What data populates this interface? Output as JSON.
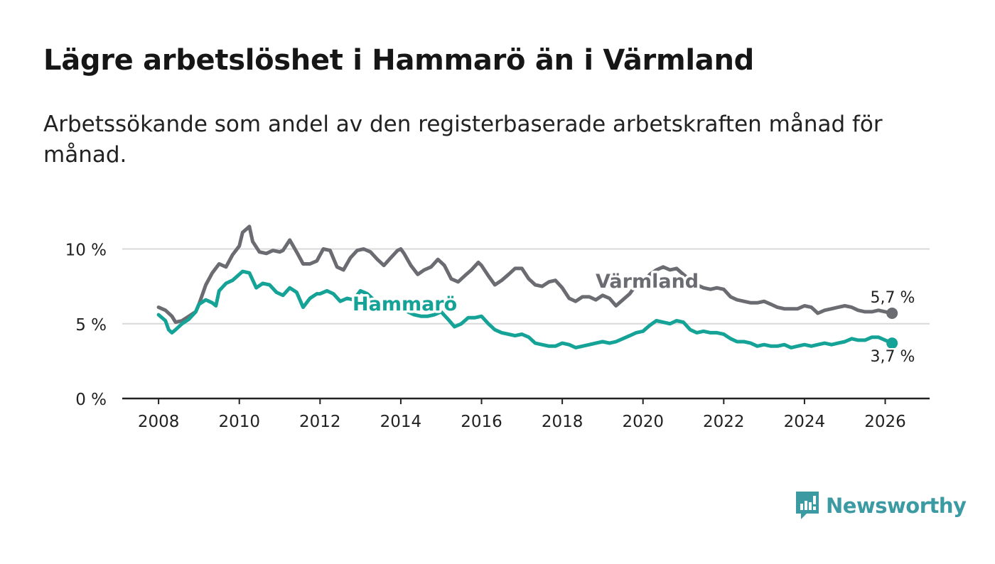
{
  "title": "Lägre arbetslöshet i Hammarö än i Värmland",
  "subtitle": "Arbetssökande som andel av den registerbaserade arbetskraften månad för månad.",
  "brand": {
    "name": "Newsworthy",
    "logo_icon": "bar-chart-speech-bubble-icon"
  },
  "colors": {
    "varmland": "#6b6b72",
    "hammaro": "#14a396",
    "grid": "#d9d9d9",
    "axis": "#222222",
    "brand": "#3b9aa2"
  },
  "chart_data": {
    "type": "line",
    "title": "Lägre arbetslöshet i Hammarö än i Värmland",
    "xlabel": "",
    "ylabel": "",
    "xlim": [
      2007.1,
      2027.1
    ],
    "ylim": [
      0,
      10
    ],
    "x_ticks": [
      2008,
      2010,
      2012,
      2014,
      2016,
      2018,
      2020,
      2022,
      2024,
      2026
    ],
    "x_tick_labels": [
      "2008",
      "2010",
      "2012",
      "2014",
      "2016",
      "2018",
      "2020",
      "2022",
      "2024",
      "2026"
    ],
    "y_ticks": [
      0,
      5,
      10
    ],
    "y_tick_labels": [
      "0 %",
      "5 %",
      "10 %"
    ],
    "grid": true,
    "series": [
      {
        "name": "Värmland",
        "x": [
          2008.0,
          2008.17,
          2008.33,
          2008.42,
          2008.58,
          2008.75,
          2008.92,
          2009.0,
          2009.17,
          2009.33,
          2009.5,
          2009.67,
          2009.83,
          2010.0,
          2010.08,
          2010.25,
          2010.33,
          2010.5,
          2010.67,
          2010.83,
          2011.0,
          2011.08,
          2011.25,
          2011.42,
          2011.58,
          2011.75,
          2011.92,
          2012.0,
          2012.08,
          2012.25,
          2012.42,
          2012.58,
          2012.75,
          2012.92,
          2013.08,
          2013.25,
          2013.42,
          2013.58,
          2013.75,
          2013.92,
          2014.0,
          2014.08,
          2014.25,
          2014.42,
          2014.58,
          2014.75,
          2014.92,
          2015.08,
          2015.25,
          2015.42,
          2015.58,
          2015.75,
          2015.92,
          2016.0,
          2016.17,
          2016.33,
          2016.5,
          2016.67,
          2016.83,
          2017.0,
          2017.17,
          2017.33,
          2017.5,
          2017.67,
          2017.83,
          2018.0,
          2018.17,
          2018.33,
          2018.5,
          2018.67,
          2018.83,
          2019.0,
          2019.17,
          2019.33,
          2019.5,
          2019.67,
          2019.83,
          2020.0,
          2020.17,
          2020.33,
          2020.5,
          2020.67,
          2020.83,
          2021.0,
          2021.17,
          2021.33,
          2021.5,
          2021.67,
          2021.83,
          2022.0,
          2022.17,
          2022.33,
          2022.5,
          2022.67,
          2022.83,
          2023.0,
          2023.17,
          2023.33,
          2023.5,
          2023.67,
          2023.83,
          2024.0,
          2024.17,
          2024.33,
          2024.5,
          2024.67,
          2024.83,
          2025.0,
          2025.17,
          2025.33,
          2025.5,
          2025.67,
          2025.83,
          2026.0,
          2026.17
        ],
        "values": [
          6.1,
          5.9,
          5.5,
          5.1,
          5.2,
          5.5,
          5.8,
          6.3,
          7.6,
          8.4,
          9.0,
          8.8,
          9.6,
          10.2,
          11.1,
          11.5,
          10.5,
          9.8,
          9.7,
          9.9,
          9.8,
          9.9,
          10.6,
          9.8,
          9.0,
          9.0,
          9.2,
          9.6,
          10.0,
          9.9,
          8.8,
          8.6,
          9.4,
          9.9,
          10.0,
          9.8,
          9.3,
          8.9,
          9.4,
          9.9,
          10.0,
          9.7,
          8.9,
          8.3,
          8.6,
          8.8,
          9.3,
          8.9,
          8.0,
          7.8,
          8.2,
          8.6,
          9.1,
          8.9,
          8.2,
          7.6,
          7.9,
          8.3,
          8.7,
          8.7,
          8.0,
          7.6,
          7.5,
          7.8,
          7.9,
          7.4,
          6.7,
          6.5,
          6.8,
          6.8,
          6.6,
          6.9,
          6.7,
          6.2,
          6.6,
          7.0,
          7.6,
          7.8,
          8.3,
          8.6,
          8.8,
          8.6,
          8.7,
          8.3,
          7.9,
          7.6,
          7.4,
          7.3,
          7.4,
          7.3,
          6.8,
          6.6,
          6.5,
          6.4,
          6.4,
          6.5,
          6.3,
          6.1,
          6.0,
          6.0,
          6.0,
          6.2,
          6.1,
          5.7,
          5.9,
          6.0,
          6.1,
          6.2,
          6.1,
          5.9,
          5.8,
          5.8,
          5.9,
          5.8,
          5.7
        ]
      },
      {
        "name": "Hammarö",
        "x": [
          2008.0,
          2008.17,
          2008.25,
          2008.33,
          2008.42,
          2008.58,
          2008.75,
          2008.92,
          2009.0,
          2009.17,
          2009.33,
          2009.42,
          2009.5,
          2009.67,
          2009.83,
          2010.0,
          2010.08,
          2010.25,
          2010.42,
          2010.58,
          2010.75,
          2010.92,
          2011.08,
          2011.25,
          2011.42,
          2011.58,
          2011.75,
          2011.92,
          2012.0,
          2012.17,
          2012.33,
          2012.5,
          2012.67,
          2012.83,
          2013.0,
          2013.17,
          2013.33,
          2013.5,
          2013.67,
          2013.83,
          2014.0,
          2014.17,
          2014.33,
          2014.5,
          2014.67,
          2014.83,
          2015.0,
          2015.17,
          2015.33,
          2015.5,
          2015.67,
          2015.83,
          2016.0,
          2016.17,
          2016.33,
          2016.5,
          2016.67,
          2016.83,
          2017.0,
          2017.17,
          2017.33,
          2017.5,
          2017.67,
          2017.83,
          2018.0,
          2018.17,
          2018.33,
          2018.5,
          2018.67,
          2018.83,
          2019.0,
          2019.17,
          2019.33,
          2019.5,
          2019.67,
          2019.83,
          2020.0,
          2020.17,
          2020.33,
          2020.5,
          2020.67,
          2020.83,
          2021.0,
          2021.17,
          2021.33,
          2021.5,
          2021.67,
          2021.83,
          2022.0,
          2022.17,
          2022.33,
          2022.5,
          2022.67,
          2022.83,
          2023.0,
          2023.17,
          2023.33,
          2023.5,
          2023.67,
          2023.83,
          2024.0,
          2024.17,
          2024.33,
          2024.5,
          2024.67,
          2024.83,
          2025.0,
          2025.17,
          2025.33,
          2025.5,
          2025.67,
          2025.83,
          2026.0,
          2026.17
        ],
        "values": [
          5.6,
          5.2,
          4.6,
          4.4,
          4.6,
          5.0,
          5.3,
          5.8,
          6.3,
          6.6,
          6.4,
          6.2,
          7.2,
          7.7,
          7.9,
          8.3,
          8.5,
          8.4,
          7.4,
          7.7,
          7.6,
          7.1,
          6.9,
          7.4,
          7.1,
          6.1,
          6.7,
          7.0,
          7.0,
          7.2,
          7.0,
          6.5,
          6.7,
          6.6,
          7.2,
          7.0,
          6.6,
          6.4,
          6.3,
          6.1,
          6.1,
          5.8,
          5.6,
          5.5,
          5.5,
          5.6,
          5.8,
          5.3,
          4.8,
          5.0,
          5.4,
          5.4,
          5.5,
          5.0,
          4.6,
          4.4,
          4.3,
          4.2,
          4.3,
          4.1,
          3.7,
          3.6,
          3.5,
          3.5,
          3.7,
          3.6,
          3.4,
          3.5,
          3.6,
          3.7,
          3.8,
          3.7,
          3.8,
          4.0,
          4.2,
          4.4,
          4.5,
          4.9,
          5.2,
          5.1,
          5.0,
          5.2,
          5.1,
          4.6,
          4.4,
          4.5,
          4.4,
          4.4,
          4.3,
          4.0,
          3.8,
          3.8,
          3.7,
          3.5,
          3.6,
          3.5,
          3.5,
          3.6,
          3.4,
          3.5,
          3.6,
          3.5,
          3.6,
          3.7,
          3.6,
          3.7,
          3.8,
          4.0,
          3.9,
          3.9,
          4.1,
          4.1,
          3.9,
          3.7
        ]
      }
    ],
    "series_labels": [
      "Värmland",
      "Hammarö"
    ],
    "end_labels": [
      "5,7 %",
      "3,7 %"
    ],
    "annotations": []
  }
}
